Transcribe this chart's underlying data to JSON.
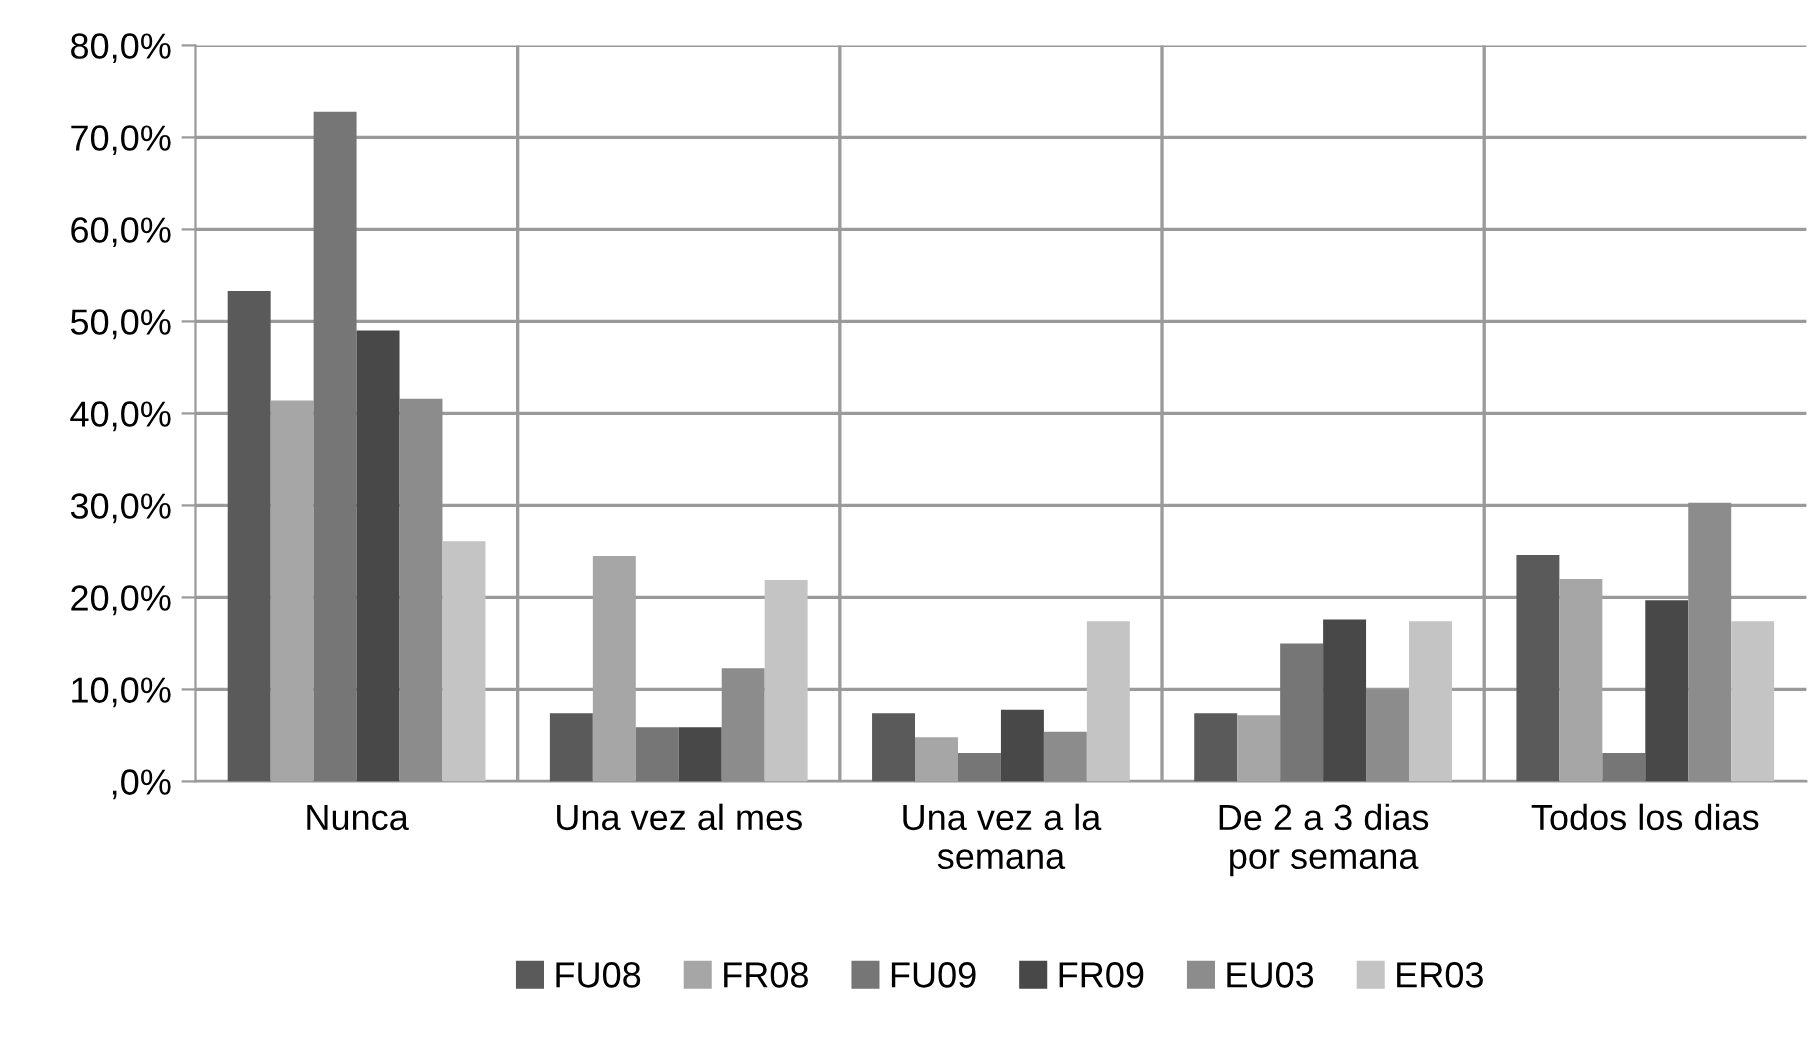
{
  "chart_data": {
    "type": "bar",
    "categories": [
      "Nunca",
      "Una vez al mes",
      "Una vez a la\nsemana",
      "De 2 a 3 dias\npor semana",
      "Todos los dias"
    ],
    "series": [
      {
        "name": "FU08",
        "color": "#5a5a5a",
        "values": [
          53.3,
          7.4,
          7.4,
          7.4,
          24.6
        ]
      },
      {
        "name": "FR08",
        "color": "#a6a6a6",
        "values": [
          41.4,
          24.5,
          4.8,
          7.2,
          22.0
        ]
      },
      {
        "name": "FU09",
        "color": "#767676",
        "values": [
          72.8,
          5.9,
          3.1,
          15.0,
          3.1
        ]
      },
      {
        "name": "FR09",
        "color": "#484848",
        "values": [
          49.0,
          5.9,
          7.8,
          17.6,
          19.7
        ]
      },
      {
        "name": "EU03",
        "color": "#8c8c8c",
        "values": [
          41.6,
          12.3,
          5.4,
          10.0,
          30.3
        ]
      },
      {
        "name": "ER03",
        "color": "#c4c4c4",
        "values": [
          26.1,
          21.9,
          17.4,
          17.4,
          17.4
        ]
      }
    ],
    "ylim": [
      0,
      80
    ],
    "yticks": [
      {
        "value": 0,
        "label": ",0%"
      },
      {
        "value": 10,
        "label": "10,0%"
      },
      {
        "value": 20,
        "label": "20,0%"
      },
      {
        "value": 30,
        "label": "30,0%"
      },
      {
        "value": 40,
        "label": "40,0%"
      },
      {
        "value": 50,
        "label": "50,0%"
      },
      {
        "value": 60,
        "label": "60,0%"
      },
      {
        "value": 70,
        "label": "70,0%"
      },
      {
        "value": 80,
        "label": "80,0%"
      }
    ],
    "grid": true,
    "legend": "bottom"
  }
}
